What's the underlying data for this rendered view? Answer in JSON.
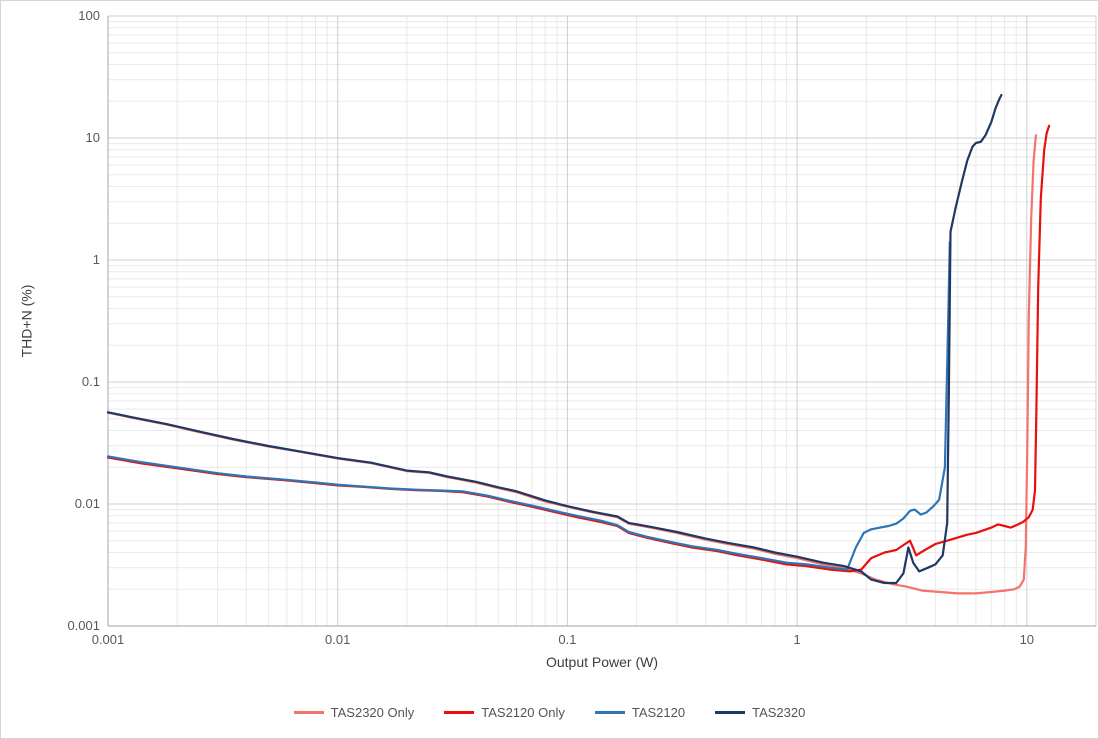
{
  "chart_data": {
    "type": "line",
    "title": "",
    "xlabel": "Output Power (W)",
    "ylabel": "THD+N (%)",
    "x_scale": "log",
    "y_scale": "log",
    "xlim": [
      0.001,
      20
    ],
    "ylim": [
      0.001,
      100
    ],
    "x_ticks": {
      "values": [
        0.001,
        0.01,
        0.1,
        1,
        10
      ],
      "labels": [
        "0.001",
        "0.01",
        "0.1",
        "1",
        "10"
      ]
    },
    "y_ticks": {
      "values": [
        0.001,
        0.01,
        0.1,
        1,
        10,
        100
      ],
      "labels": [
        "0.001",
        "0.01",
        "0.1",
        "1",
        "10",
        "100"
      ]
    },
    "grid": {
      "major": true,
      "minor": true
    },
    "legend_position": "bottom",
    "style": {
      "minor_grid_color": "#eaeaea",
      "major_grid_color": "#cfcfcf",
      "axis_line_color": "#b3b3b3",
      "tick_label_color": "#595959",
      "axis_title_color": "#3d3d3d",
      "background": "#ffffff"
    },
    "series": [
      {
        "name": "TAS2320 Only",
        "color": "#f4736d",
        "points": [
          [
            0.001,
            0.056
          ],
          [
            0.0013,
            0.0505
          ],
          [
            0.0018,
            0.0448
          ],
          [
            0.0025,
            0.0388
          ],
          [
            0.0035,
            0.0338
          ],
          [
            0.005,
            0.0296
          ],
          [
            0.007,
            0.0266
          ],
          [
            0.01,
            0.0236
          ],
          [
            0.014,
            0.0216
          ],
          [
            0.02,
            0.0186
          ],
          [
            0.025,
            0.018
          ],
          [
            0.03,
            0.0166
          ],
          [
            0.04,
            0.015
          ],
          [
            0.05,
            0.0135
          ],
          [
            0.06,
            0.0125
          ],
          [
            0.08,
            0.0105
          ],
          [
            0.1,
            0.0095
          ],
          [
            0.13,
            0.0085
          ],
          [
            0.165,
            0.0078
          ],
          [
            0.185,
            0.0069
          ],
          [
            0.23,
            0.0064
          ],
          [
            0.3,
            0.0058
          ],
          [
            0.4,
            0.0051
          ],
          [
            0.5,
            0.0047
          ],
          [
            0.65,
            0.0043
          ],
          [
            0.8,
            0.0039
          ],
          [
            1.0,
            0.0036
          ],
          [
            1.3,
            0.0032
          ],
          [
            1.6,
            0.003
          ],
          [
            1.9,
            0.0027
          ],
          [
            2.2,
            0.0024
          ],
          [
            2.6,
            0.0022
          ],
          [
            3.0,
            0.0021
          ],
          [
            3.5,
            0.00195
          ],
          [
            4.2,
            0.0019
          ],
          [
            5.0,
            0.00185
          ],
          [
            6.0,
            0.00185
          ],
          [
            7.0,
            0.0019
          ],
          [
            8.0,
            0.00195
          ],
          [
            8.8,
            0.002
          ],
          [
            9.3,
            0.0021
          ],
          [
            9.7,
            0.0024
          ],
          [
            9.9,
            0.0045
          ],
          [
            10.05,
            0.03
          ],
          [
            10.2,
            0.35
          ],
          [
            10.45,
            2.2
          ],
          [
            10.7,
            6.5
          ],
          [
            10.95,
            10.5
          ]
        ]
      },
      {
        "name": "TAS2120 Only",
        "color": "#e8100c",
        "points": [
          [
            0.001,
            0.024
          ],
          [
            0.0014,
            0.0215
          ],
          [
            0.002,
            0.0196
          ],
          [
            0.003,
            0.0176
          ],
          [
            0.004,
            0.0166
          ],
          [
            0.006,
            0.0156
          ],
          [
            0.008,
            0.0148
          ],
          [
            0.01,
            0.0142
          ],
          [
            0.013,
            0.0138
          ],
          [
            0.017,
            0.0133
          ],
          [
            0.022,
            0.013
          ],
          [
            0.028,
            0.0128
          ],
          [
            0.035,
            0.0125
          ],
          [
            0.045,
            0.0115
          ],
          [
            0.055,
            0.0105
          ],
          [
            0.07,
            0.0095
          ],
          [
            0.09,
            0.0085
          ],
          [
            0.11,
            0.0078
          ],
          [
            0.14,
            0.0071
          ],
          [
            0.165,
            0.0066
          ],
          [
            0.185,
            0.0058
          ],
          [
            0.22,
            0.0053
          ],
          [
            0.28,
            0.0048
          ],
          [
            0.35,
            0.0044
          ],
          [
            0.45,
            0.0041
          ],
          [
            0.55,
            0.0038
          ],
          [
            0.7,
            0.0035
          ],
          [
            0.9,
            0.0032
          ],
          [
            1.1,
            0.0031
          ],
          [
            1.4,
            0.0029
          ],
          [
            1.7,
            0.0028
          ],
          [
            1.9,
            0.0029
          ],
          [
            2.1,
            0.0036
          ],
          [
            2.4,
            0.004
          ],
          [
            2.7,
            0.0042
          ],
          [
            2.9,
            0.0046
          ],
          [
            3.1,
            0.005
          ],
          [
            3.3,
            0.0038
          ],
          [
            3.6,
            0.0042
          ],
          [
            4.0,
            0.0047
          ],
          [
            4.5,
            0.005
          ],
          [
            5.0,
            0.0053
          ],
          [
            5.5,
            0.0056
          ],
          [
            6.0,
            0.0058
          ],
          [
            6.5,
            0.0061
          ],
          [
            7.0,
            0.0064
          ],
          [
            7.5,
            0.0068
          ],
          [
            8.0,
            0.0066
          ],
          [
            8.5,
            0.0064
          ],
          [
            9.0,
            0.0067
          ],
          [
            9.6,
            0.0071
          ],
          [
            10.2,
            0.0078
          ],
          [
            10.6,
            0.009
          ],
          [
            10.85,
            0.013
          ],
          [
            11.0,
            0.06
          ],
          [
            11.2,
            0.6
          ],
          [
            11.5,
            3.2
          ],
          [
            11.9,
            8
          ],
          [
            12.2,
            11
          ],
          [
            12.5,
            12.6
          ]
        ]
      },
      {
        "name": "TAS2120",
        "color": "#2e75b6",
        "points": [
          [
            0.001,
            0.0245
          ],
          [
            0.0014,
            0.022
          ],
          [
            0.002,
            0.02
          ],
          [
            0.003,
            0.0179
          ],
          [
            0.004,
            0.0168
          ],
          [
            0.006,
            0.0158
          ],
          [
            0.008,
            0.015
          ],
          [
            0.01,
            0.0144
          ],
          [
            0.013,
            0.0139
          ],
          [
            0.017,
            0.0134
          ],
          [
            0.022,
            0.0131
          ],
          [
            0.028,
            0.0129
          ],
          [
            0.035,
            0.0127
          ],
          [
            0.045,
            0.0117
          ],
          [
            0.055,
            0.0107
          ],
          [
            0.07,
            0.0097
          ],
          [
            0.09,
            0.0087
          ],
          [
            0.11,
            0.008
          ],
          [
            0.14,
            0.0073
          ],
          [
            0.165,
            0.0067
          ],
          [
            0.185,
            0.0059
          ],
          [
            0.22,
            0.0054
          ],
          [
            0.28,
            0.0049
          ],
          [
            0.35,
            0.0045
          ],
          [
            0.45,
            0.0042
          ],
          [
            0.55,
            0.0039
          ],
          [
            0.7,
            0.0036
          ],
          [
            0.9,
            0.0033
          ],
          [
            1.1,
            0.0032
          ],
          [
            1.4,
            0.003
          ],
          [
            1.65,
            0.0029
          ],
          [
            1.8,
            0.0044
          ],
          [
            1.95,
            0.0058
          ],
          [
            2.1,
            0.0062
          ],
          [
            2.3,
            0.0064
          ],
          [
            2.5,
            0.0066
          ],
          [
            2.7,
            0.0069
          ],
          [
            2.9,
            0.0076
          ],
          [
            3.1,
            0.0088
          ],
          [
            3.25,
            0.009
          ],
          [
            3.45,
            0.0082
          ],
          [
            3.65,
            0.0085
          ],
          [
            3.9,
            0.0095
          ],
          [
            4.15,
            0.0108
          ],
          [
            4.4,
            0.02
          ],
          [
            4.55,
            0.35
          ],
          [
            4.62,
            1.4
          ]
        ]
      },
      {
        "name": "TAS2320",
        "color": "#203864",
        "points": [
          [
            0.001,
            0.0565
          ],
          [
            0.0013,
            0.051
          ],
          [
            0.0018,
            0.0452
          ],
          [
            0.0025,
            0.0392
          ],
          [
            0.0035,
            0.0341
          ],
          [
            0.005,
            0.0299
          ],
          [
            0.007,
            0.0268
          ],
          [
            0.01,
            0.0238
          ],
          [
            0.014,
            0.0218
          ],
          [
            0.02,
            0.0188
          ],
          [
            0.025,
            0.0182
          ],
          [
            0.03,
            0.0168
          ],
          [
            0.04,
            0.0152
          ],
          [
            0.05,
            0.0137
          ],
          [
            0.06,
            0.0127
          ],
          [
            0.08,
            0.0107
          ],
          [
            0.1,
            0.0096
          ],
          [
            0.13,
            0.0086
          ],
          [
            0.165,
            0.0079
          ],
          [
            0.185,
            0.007
          ],
          [
            0.23,
            0.0065
          ],
          [
            0.3,
            0.0059
          ],
          [
            0.4,
            0.0052
          ],
          [
            0.5,
            0.0048
          ],
          [
            0.65,
            0.0044
          ],
          [
            0.8,
            0.004
          ],
          [
            1.0,
            0.0037
          ],
          [
            1.3,
            0.0033
          ],
          [
            1.6,
            0.0031
          ],
          [
            1.9,
            0.0028
          ],
          [
            2.1,
            0.0024
          ],
          [
            2.4,
            0.00225
          ],
          [
            2.7,
            0.00225
          ],
          [
            2.9,
            0.0027
          ],
          [
            3.05,
            0.0044
          ],
          [
            3.2,
            0.0033
          ],
          [
            3.4,
            0.0028
          ],
          [
            3.7,
            0.003
          ],
          [
            4.0,
            0.0032
          ],
          [
            4.3,
            0.0038
          ],
          [
            4.5,
            0.007
          ],
          [
            4.58,
            0.09
          ],
          [
            4.65,
            1.7
          ],
          [
            4.9,
            2.7
          ],
          [
            5.2,
            4.3
          ],
          [
            5.5,
            6.5
          ],
          [
            5.8,
            8.5
          ],
          [
            6.0,
            9.1
          ],
          [
            6.3,
            9.3
          ],
          [
            6.6,
            10.5
          ],
          [
            7.0,
            13.5
          ],
          [
            7.3,
            17.5
          ],
          [
            7.6,
            21
          ],
          [
            7.75,
            22.5
          ]
        ]
      }
    ]
  }
}
